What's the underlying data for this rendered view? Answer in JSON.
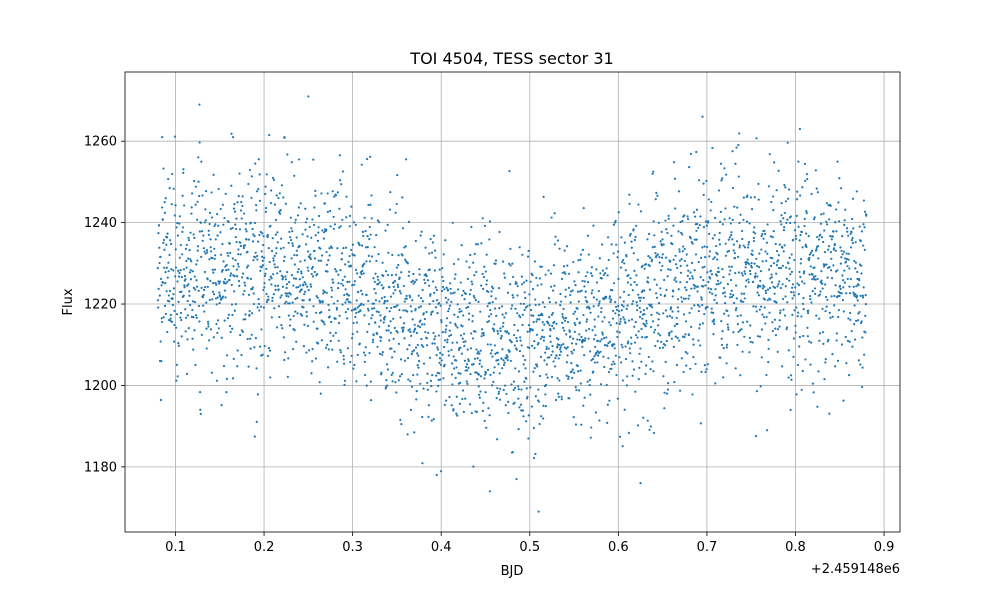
{
  "chart_data": {
    "type": "scatter",
    "title": "TOI 4504, TESS sector 31",
    "xlabel": "BJD",
    "ylabel": "Flux",
    "x_offset_label": "+2.459148e6",
    "xlim": [
      0.043,
      0.918
    ],
    "ylim": [
      1164,
      1277
    ],
    "xticks": [
      0.1,
      0.2,
      0.3,
      0.4,
      0.5,
      0.6,
      0.7,
      0.8,
      0.9
    ],
    "xtick_labels": [
      "0.1",
      "0.2",
      "0.3",
      "0.4",
      "0.5",
      "0.6",
      "0.7",
      "0.8",
      "0.9"
    ],
    "yticks": [
      1180,
      1200,
      1220,
      1240,
      1260
    ],
    "ytick_labels": [
      "1180",
      "1200",
      "1220",
      "1240",
      "1260"
    ],
    "grid": true,
    "marker_color": "#1f77b4",
    "series": [
      {
        "name": "",
        "x_range": [
          0.08,
          0.88
        ],
        "trend": [
          {
            "x": 0.08,
            "y": 1228
          },
          {
            "x": 0.2,
            "y": 1228
          },
          {
            "x": 0.3,
            "y": 1226
          },
          {
            "x": 0.4,
            "y": 1213
          },
          {
            "x": 0.5,
            "y": 1211
          },
          {
            "x": 0.6,
            "y": 1218
          },
          {
            "x": 0.7,
            "y": 1227
          },
          {
            "x": 0.8,
            "y": 1228
          },
          {
            "x": 0.88,
            "y": 1228
          }
        ],
        "scatter_sd": 12,
        "n_points": 3200,
        "outliers": [
          {
            "x": 0.127,
            "y": 1269
          },
          {
            "x": 0.25,
            "y": 1271
          },
          {
            "x": 0.695,
            "y": 1266
          },
          {
            "x": 0.805,
            "y": 1263
          },
          {
            "x": 0.085,
            "y": 1261
          },
          {
            "x": 0.165,
            "y": 1261
          },
          {
            "x": 0.223,
            "y": 1261
          },
          {
            "x": 0.51,
            "y": 1169
          },
          {
            "x": 0.455,
            "y": 1174
          },
          {
            "x": 0.625,
            "y": 1176
          },
          {
            "x": 0.395,
            "y": 1178
          },
          {
            "x": 0.485,
            "y": 1177
          }
        ]
      }
    ]
  }
}
